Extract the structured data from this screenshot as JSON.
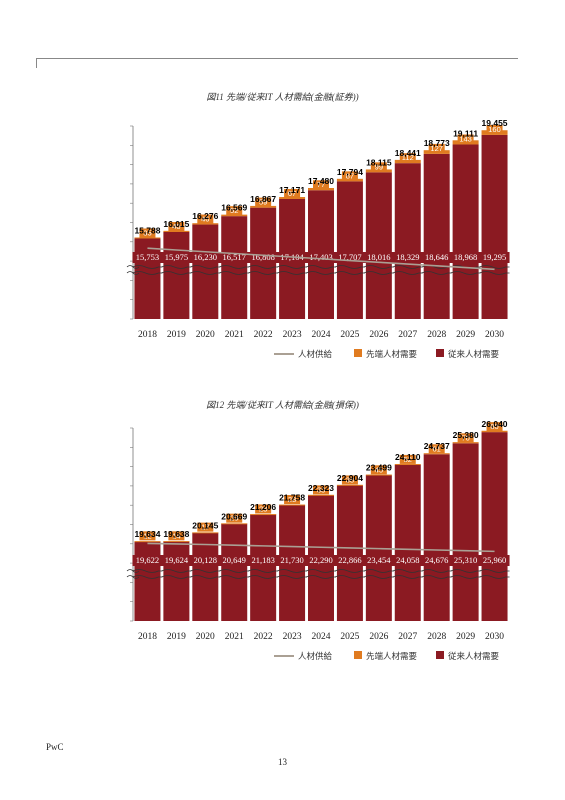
{
  "page": {
    "brand": "PwC",
    "page_number": "13"
  },
  "chart_data": [
    {
      "type": "bar",
      "stacked": true,
      "title": "図11 先端/従来IT 人材需給(金融(証券))",
      "categories": [
        "2018",
        "2019",
        "2020",
        "2021",
        "2022",
        "2023",
        "2024",
        "2025",
        "2026",
        "2027",
        "2028",
        "2029",
        "2030"
      ],
      "series": [
        {
          "name": "従来人材需要",
          "color": "#8b1a22",
          "values": [
            15753,
            15975,
            16230,
            16517,
            16808,
            17104,
            17403,
            17707,
            18016,
            18329,
            18646,
            18968,
            19295
          ]
        },
        {
          "name": "先端人材需要",
          "color": "#e07b20",
          "values": [
            35,
            40,
            46,
            52,
            59,
            67,
            77,
            87,
            99,
            112,
            127,
            143,
            160
          ]
        },
        {
          "name": "人材供給",
          "color": "#aaa094",
          "type": "line",
          "values": [
            15420,
            15360,
            15300,
            15240,
            15180,
            15120,
            15060,
            15000,
            14940,
            14880,
            14820,
            14760,
            14700
          ]
        }
      ],
      "totals": [
        "15,788",
        "16,015",
        "16,276",
        "16,569",
        "16,867",
        "17,171",
        "17,480",
        "17,794",
        "18,115",
        "18,441",
        "18,773",
        "19,111",
        "19,455"
      ],
      "traditional_labels": [
        "15,753",
        "15,975",
        "16,230",
        "16,517",
        "16,808",
        "17,104",
        "17,403",
        "17,707",
        "18,016",
        "18,329",
        "18,646",
        "18,968",
        "19,295"
      ],
      "advanced_labels": [
        "35",
        "40",
        "46",
        "52",
        "59",
        "67",
        "77",
        "87",
        "99",
        "112",
        "127",
        "143",
        "160"
      ],
      "ylim": [
        13000,
        19600
      ],
      "axis_break": true,
      "grid": false,
      "legend_position": "bottom-right"
    },
    {
      "type": "bar",
      "stacked": true,
      "title": "図12 先端/従来IT 人材需給(金融(損保))",
      "categories": [
        "2018",
        "2019",
        "2020",
        "2021",
        "2022",
        "2023",
        "2024",
        "2025",
        "2026",
        "2027",
        "2028",
        "2029",
        "2030"
      ],
      "series": [
        {
          "name": "従来人材需要",
          "color": "#8b1a22",
          "values": [
            19622,
            19624,
            20128,
            20649,
            21183,
            21730,
            22290,
            22866,
            23454,
            24058,
            24676,
            25310,
            25960
          ]
        },
        {
          "name": "先端人材需要",
          "color": "#e07b20",
          "values": [
            12,
            14,
            17,
            20,
            23,
            28,
            33,
            38,
            45,
            52,
            61,
            70,
            80
          ]
        },
        {
          "name": "人材供給",
          "color": "#aaa094",
          "type": "line",
          "values": [
            19500,
            19470,
            19440,
            19400,
            19360,
            19320,
            19280,
            19240,
            19200,
            19160,
            19120,
            19080,
            19040
          ]
        }
      ],
      "totals": [
        "19,634",
        "19,638",
        "20,145",
        "20,669",
        "21,206",
        "21,758",
        "22,323",
        "22,904",
        "23,499",
        "24,110",
        "24,737",
        "25,380",
        "26,040"
      ],
      "traditional_labels": [
        "19,622",
        "19,624",
        "20,128",
        "20,649",
        "21,183",
        "21,730",
        "22,290",
        "22,866",
        "23,454",
        "24,058",
        "24,676",
        "25,310",
        "25,960"
      ],
      "advanced_labels": [
        "12",
        "14",
        "17",
        "20",
        "23",
        "28",
        "33",
        "38",
        "45",
        "52",
        "61",
        "70",
        "80"
      ],
      "ylim": [
        15000,
        26200
      ],
      "axis_break": true,
      "grid": false,
      "legend_position": "bottom-right"
    }
  ],
  "legend": {
    "supply": "人材供給",
    "advanced": "先端人材需要",
    "traditional": "従来人材需要"
  }
}
